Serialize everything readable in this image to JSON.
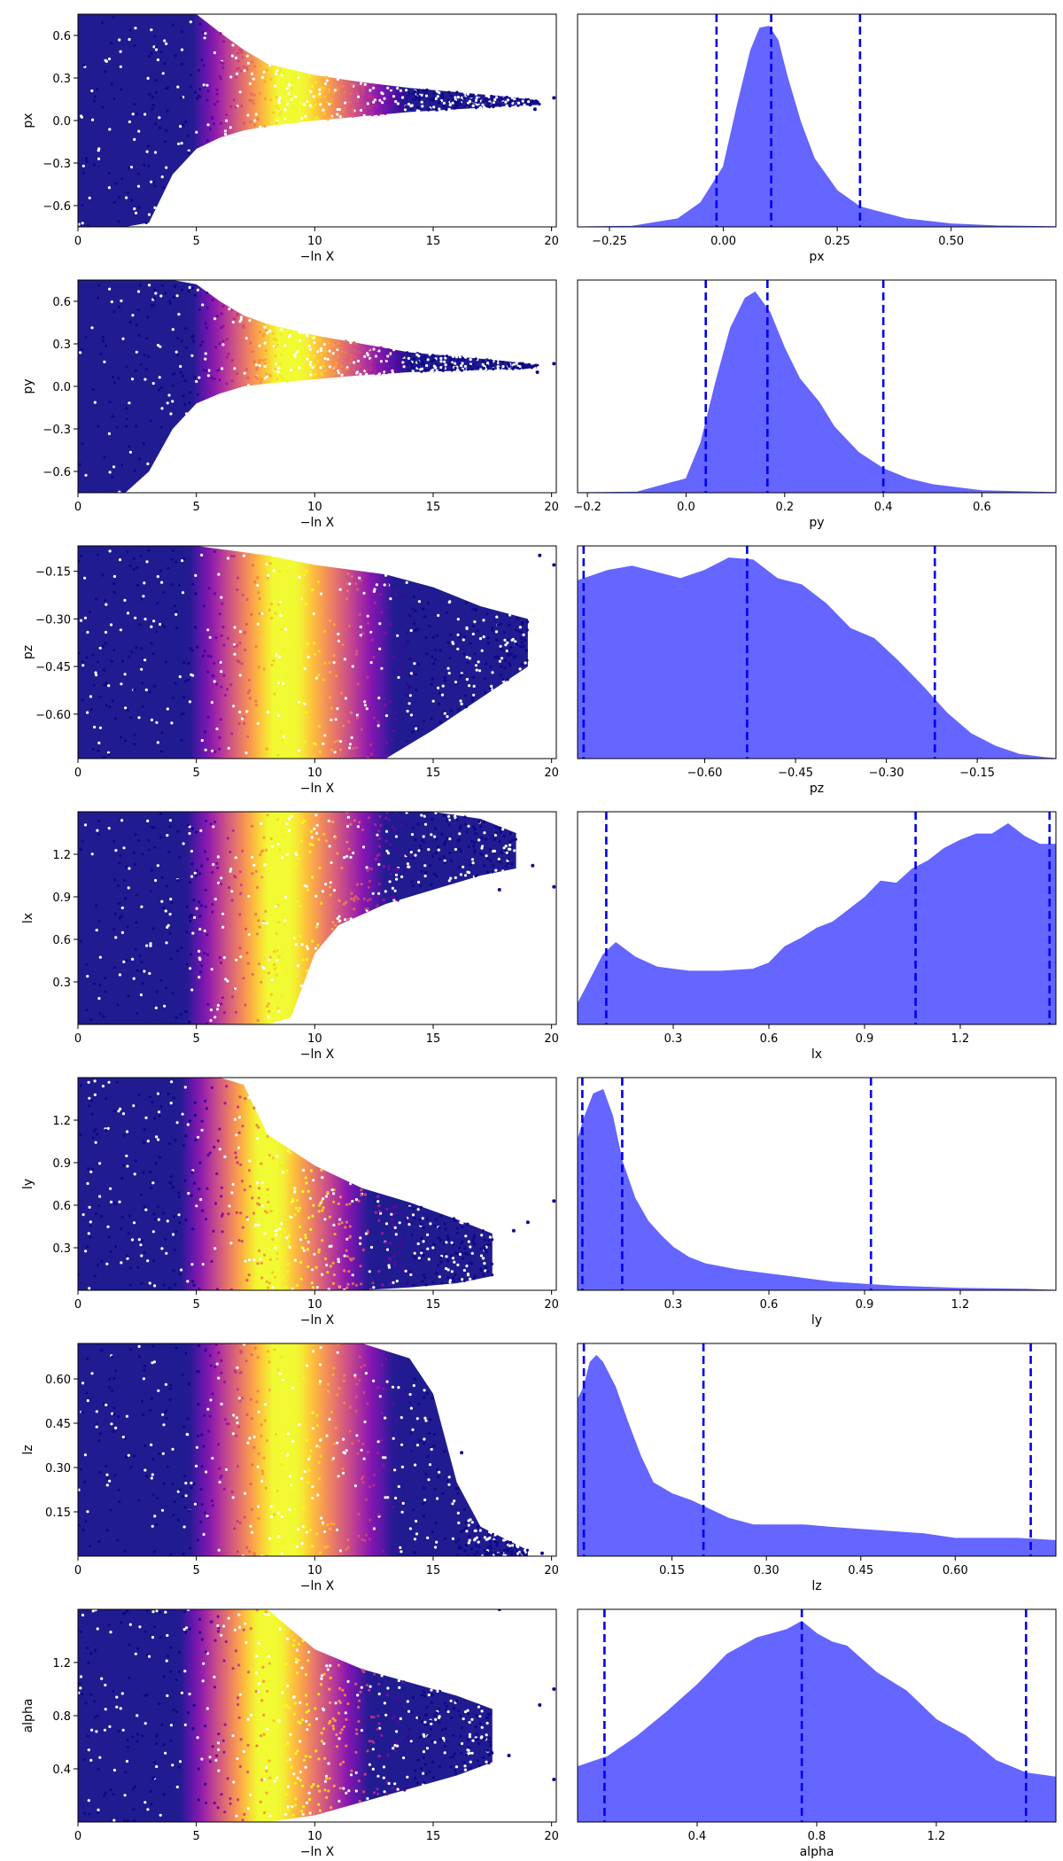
{
  "chart_data": [
    {
      "type": "scatter",
      "ylabel": "px",
      "xlabel": "−ln X",
      "xlim": [
        0,
        20.2
      ],
      "ylim": [
        -0.75,
        0.75
      ],
      "xticks": [
        "0",
        "5",
        "10",
        "15",
        "20"
      ],
      "yticks": [
        "−0.6",
        "−0.3",
        "0.0",
        "0.3",
        "0.6"
      ],
      "colormap": "plasma",
      "envelope": [
        [
          0,
          -0.75,
          0.75
        ],
        [
          2,
          -0.75,
          0.75
        ],
        [
          3,
          -0.72,
          0.75
        ],
        [
          4,
          -0.38,
          0.75
        ],
        [
          5,
          -0.2,
          0.75
        ],
        [
          6,
          -0.12,
          0.62
        ],
        [
          7,
          -0.07,
          0.5
        ],
        [
          8,
          -0.04,
          0.4
        ],
        [
          10,
          0.0,
          0.32
        ],
        [
          12,
          0.03,
          0.27
        ],
        [
          14,
          0.06,
          0.23
        ],
        [
          16,
          0.08,
          0.2
        ],
        [
          18,
          0.1,
          0.17
        ],
        [
          19.5,
          0.11,
          0.14
        ]
      ],
      "outliers": [
        [
          20.1,
          0.16
        ],
        [
          19.3,
          0.08
        ]
      ]
    },
    {
      "type": "area",
      "xlabel": "px",
      "xlim": [
        -0.32,
        0.73
      ],
      "xticks": [
        "−0.25",
        "0.00",
        "0.25",
        "0.50"
      ],
      "x": [
        -0.32,
        -0.2,
        -0.1,
        -0.05,
        0.0,
        0.03,
        0.06,
        0.08,
        0.1,
        0.12,
        0.14,
        0.17,
        0.2,
        0.25,
        0.3,
        0.4,
        0.5,
        0.6,
        0.73
      ],
      "y": [
        0,
        0.003,
        0.04,
        0.12,
        0.3,
        0.6,
        0.88,
        0.99,
        1.0,
        0.93,
        0.75,
        0.52,
        0.34,
        0.18,
        0.1,
        0.04,
        0.015,
        0.005,
        0.001
      ],
      "quantiles": [
        -0.015,
        0.105,
        0.3
      ],
      "fill_color": "#6565ff",
      "quantile_color": "#0000ee"
    },
    {
      "type": "scatter",
      "ylabel": "py",
      "xlabel": "−ln X",
      "xlim": [
        0,
        20.2
      ],
      "ylim": [
        -0.75,
        0.75
      ],
      "xticks": [
        "0",
        "5",
        "10",
        "15",
        "20"
      ],
      "yticks": [
        "−0.6",
        "−0.3",
        "0.0",
        "0.3",
        "0.6"
      ],
      "colormap": "plasma",
      "envelope": [
        [
          0,
          -0.75,
          0.75
        ],
        [
          2,
          -0.75,
          0.75
        ],
        [
          3,
          -0.6,
          0.75
        ],
        [
          4,
          -0.3,
          0.75
        ],
        [
          5,
          -0.12,
          0.72
        ],
        [
          6,
          -0.05,
          0.6
        ],
        [
          7,
          0.0,
          0.5
        ],
        [
          8,
          0.02,
          0.44
        ],
        [
          10,
          0.05,
          0.36
        ],
        [
          12,
          0.08,
          0.3
        ],
        [
          14,
          0.1,
          0.24
        ],
        [
          16,
          0.11,
          0.21
        ],
        [
          18,
          0.12,
          0.18
        ],
        [
          19.5,
          0.13,
          0.15
        ]
      ],
      "outliers": [
        [
          20.1,
          0.16
        ],
        [
          19.4,
          0.1
        ]
      ]
    },
    {
      "type": "area",
      "xlabel": "py",
      "xlim": [
        -0.22,
        0.75
      ],
      "xticks": [
        "−0.2",
        "0.0",
        "0.2",
        "0.4",
        "0.6"
      ],
      "x": [
        -0.22,
        -0.1,
        0.0,
        0.03,
        0.06,
        0.09,
        0.12,
        0.14,
        0.17,
        0.2,
        0.23,
        0.27,
        0.3,
        0.35,
        0.4,
        0.45,
        0.5,
        0.6,
        0.75
      ],
      "y": [
        0,
        0.003,
        0.07,
        0.25,
        0.55,
        0.82,
        0.97,
        1.0,
        0.9,
        0.72,
        0.57,
        0.45,
        0.33,
        0.2,
        0.12,
        0.07,
        0.04,
        0.01,
        0.001
      ],
      "quantiles": [
        0.04,
        0.165,
        0.4
      ],
      "fill_color": "#6565ff",
      "quantile_color": "#0000ee"
    },
    {
      "type": "scatter",
      "ylabel": "pz",
      "xlabel": "−ln X",
      "xlim": [
        0,
        20.2
      ],
      "ylim": [
        -0.74,
        -0.07
      ],
      "xticks": [
        "0",
        "5",
        "10",
        "15",
        "20"
      ],
      "yticks": [
        "−0.60",
        "−0.45",
        "−0.30",
        "−0.15"
      ],
      "colormap": "plasma",
      "envelope": [
        [
          0,
          -0.74,
          -0.07
        ],
        [
          5,
          -0.74,
          -0.07
        ],
        [
          8,
          -0.74,
          -0.1
        ],
        [
          10,
          -0.74,
          -0.13
        ],
        [
          13,
          -0.74,
          -0.16
        ],
        [
          15,
          -0.65,
          -0.2
        ],
        [
          17,
          -0.55,
          -0.26
        ],
        [
          19,
          -0.45,
          -0.3
        ]
      ],
      "outliers": [
        [
          19.5,
          -0.1
        ],
        [
          20.1,
          -0.13
        ],
        [
          18.5,
          -0.38
        ],
        [
          17.7,
          -0.42
        ]
      ]
    },
    {
      "type": "area",
      "xlabel": "pz",
      "xlim": [
        -0.81,
        -0.02
      ],
      "xticks": [
        "−0.60",
        "−0.45",
        "−0.30",
        "−0.15"
      ],
      "x": [
        -0.81,
        -0.76,
        -0.72,
        -0.68,
        -0.64,
        -0.6,
        -0.56,
        -0.52,
        -0.48,
        -0.44,
        -0.4,
        -0.36,
        -0.32,
        -0.28,
        -0.24,
        -0.2,
        -0.16,
        -0.12,
        -0.08,
        -0.04,
        -0.02
      ],
      "y": [
        0.86,
        0.91,
        0.93,
        0.9,
        0.87,
        0.91,
        0.97,
        0.96,
        0.87,
        0.84,
        0.75,
        0.63,
        0.58,
        0.47,
        0.35,
        0.22,
        0.12,
        0.06,
        0.02,
        0.005,
        0.0
      ],
      "quantiles": [
        -0.8,
        -0.53,
        -0.22
      ],
      "fill_color": "#6565ff",
      "quantile_color": "#0000ee"
    },
    {
      "type": "scatter",
      "ylabel": "lx",
      "xlabel": "−ln X",
      "xlim": [
        0,
        20.2
      ],
      "ylim": [
        0.0,
        1.5
      ],
      "xticks": [
        "0",
        "5",
        "10",
        "15",
        "20"
      ],
      "yticks": [
        "0.3",
        "0.6",
        "0.9",
        "1.2"
      ],
      "colormap": "plasma",
      "envelope": [
        [
          0,
          0.0,
          1.5
        ],
        [
          5,
          0.0,
          1.5
        ],
        [
          8,
          0.0,
          1.5
        ],
        [
          9,
          0.05,
          1.5
        ],
        [
          10,
          0.5,
          1.5
        ],
        [
          11,
          0.7,
          1.5
        ],
        [
          13,
          0.85,
          1.5
        ],
        [
          15,
          0.95,
          1.5
        ],
        [
          17,
          1.05,
          1.45
        ],
        [
          18.5,
          1.1,
          1.35
        ]
      ],
      "outliers": [
        [
          20.1,
          0.97
        ],
        [
          19.2,
          1.12
        ],
        [
          17.8,
          0.95
        ]
      ]
    },
    {
      "type": "area",
      "xlabel": "lx",
      "xlim": [
        0.0,
        1.5
      ],
      "xticks": [
        "0.3",
        "0.6",
        "0.9",
        "1.2"
      ],
      "x": [
        0.0,
        0.04,
        0.08,
        0.12,
        0.18,
        0.25,
        0.35,
        0.45,
        0.55,
        0.6,
        0.65,
        0.7,
        0.75,
        0.8,
        0.85,
        0.9,
        0.95,
        1.0,
        1.05,
        1.1,
        1.15,
        1.2,
        1.25,
        1.3,
        1.35,
        1.4,
        1.45,
        1.5
      ],
      "y": [
        0.1,
        0.22,
        0.34,
        0.4,
        0.33,
        0.28,
        0.26,
        0.26,
        0.27,
        0.3,
        0.38,
        0.42,
        0.47,
        0.5,
        0.56,
        0.62,
        0.7,
        0.69,
        0.76,
        0.8,
        0.86,
        0.9,
        0.93,
        0.93,
        0.98,
        0.92,
        0.88,
        0.88
      ],
      "quantiles": [
        0.09,
        1.06,
        1.48
      ],
      "fill_color": "#6565ff",
      "quantile_color": "#0000ee"
    },
    {
      "type": "scatter",
      "ylabel": "ly",
      "xlabel": "−ln X",
      "xlim": [
        0,
        20.2
      ],
      "ylim": [
        0.0,
        1.5
      ],
      "xticks": [
        "0",
        "5",
        "10",
        "15",
        "20"
      ],
      "yticks": [
        "0.3",
        "0.6",
        "0.9",
        "1.2"
      ],
      "colormap": "plasma",
      "envelope": [
        [
          0,
          0.0,
          1.5
        ],
        [
          6,
          0.0,
          1.5
        ],
        [
          7,
          0.0,
          1.45
        ],
        [
          8,
          0.0,
          1.1
        ],
        [
          10,
          0.0,
          0.88
        ],
        [
          12,
          0.0,
          0.72
        ],
        [
          14,
          0.02,
          0.62
        ],
        [
          16,
          0.05,
          0.5
        ],
        [
          17.5,
          0.1,
          0.4
        ]
      ],
      "outliers": [
        [
          20.1,
          0.63
        ],
        [
          19.0,
          0.48
        ],
        [
          18.4,
          0.42
        ]
      ]
    },
    {
      "type": "area",
      "xlabel": "ly",
      "xlim": [
        0.0,
        1.5
      ],
      "xticks": [
        "0.3",
        "0.6",
        "0.9",
        "1.2"
      ],
      "x": [
        0.0,
        0.02,
        0.05,
        0.08,
        0.11,
        0.14,
        0.18,
        0.22,
        0.26,
        0.3,
        0.35,
        0.4,
        0.5,
        0.6,
        0.7,
        0.8,
        0.9,
        1.0,
        1.2,
        1.4,
        1.5
      ],
      "y": [
        0.73,
        0.84,
        0.96,
        0.98,
        0.85,
        0.63,
        0.45,
        0.34,
        0.27,
        0.21,
        0.16,
        0.13,
        0.1,
        0.08,
        0.06,
        0.04,
        0.03,
        0.02,
        0.01,
        0.005,
        0.0
      ],
      "quantiles": [
        0.015,
        0.14,
        0.92
      ],
      "fill_color": "#6565ff",
      "quantile_color": "#0000ee"
    },
    {
      "type": "scatter",
      "ylabel": "lz",
      "xlabel": "−ln X",
      "xlim": [
        0,
        20.2
      ],
      "ylim": [
        0.0,
        0.72
      ],
      "xticks": [
        "0",
        "5",
        "10",
        "15",
        "20"
      ],
      "yticks": [
        "0.15",
        "0.30",
        "0.45",
        "0.60"
      ],
      "colormap": "plasma",
      "envelope": [
        [
          0,
          0.0,
          0.72
        ],
        [
          12,
          0.0,
          0.72
        ],
        [
          14,
          0.0,
          0.67
        ],
        [
          15,
          0.0,
          0.55
        ],
        [
          16,
          0.0,
          0.25
        ],
        [
          17,
          0.0,
          0.1
        ],
        [
          19,
          0.0,
          0.02
        ]
      ],
      "outliers": [
        [
          18.8,
          0.01
        ],
        [
          19.6,
          0.01
        ],
        [
          16.2,
          0.35
        ]
      ]
    },
    {
      "type": "area",
      "xlabel": "lz",
      "xlim": [
        0.0,
        0.76
      ],
      "xticks": [
        "0.15",
        "0.30",
        "0.45",
        "0.60"
      ],
      "x": [
        0.0,
        0.01,
        0.02,
        0.03,
        0.04,
        0.06,
        0.08,
        0.1,
        0.12,
        0.15,
        0.18,
        0.21,
        0.24,
        0.28,
        0.32,
        0.36,
        0.4,
        0.45,
        0.5,
        0.55,
        0.6,
        0.65,
        0.7,
        0.76
      ],
      "y": [
        0.7,
        0.76,
        0.87,
        0.9,
        0.87,
        0.76,
        0.6,
        0.45,
        0.33,
        0.28,
        0.25,
        0.21,
        0.17,
        0.14,
        0.14,
        0.14,
        0.13,
        0.12,
        0.11,
        0.1,
        0.08,
        0.08,
        0.08,
        0.07
      ],
      "quantiles": [
        0.01,
        0.2,
        0.72
      ],
      "fill_color": "#6565ff",
      "quantile_color": "#0000ee"
    },
    {
      "type": "scatter",
      "ylabel": "alpha",
      "xlabel": "−ln X",
      "xlim": [
        0,
        20.2
      ],
      "ylim": [
        0.0,
        1.6
      ],
      "xticks": [
        "0",
        "5",
        "10",
        "15",
        "20"
      ],
      "yticks": [
        "0.4",
        "0.8",
        "1.2"
      ],
      "colormap": "plasma",
      "envelope": [
        [
          0,
          0.0,
          1.6
        ],
        [
          8,
          0.0,
          1.6
        ],
        [
          10,
          0.05,
          1.3
        ],
        [
          12,
          0.15,
          1.15
        ],
        [
          14,
          0.25,
          1.05
        ],
        [
          16,
          0.35,
          0.95
        ],
        [
          17.5,
          0.45,
          0.85
        ]
      ],
      "outliers": [
        [
          17.8,
          1.6
        ],
        [
          20.1,
          1.0
        ],
        [
          19.5,
          0.88
        ],
        [
          20.1,
          0.32
        ],
        [
          18.2,
          0.5
        ]
      ]
    },
    {
      "type": "area",
      "xlabel": "alpha",
      "xlim": [
        0.0,
        1.6
      ],
      "xticks": [
        "0.4",
        "0.8",
        "1.2"
      ],
      "x": [
        0.0,
        0.1,
        0.2,
        0.3,
        0.4,
        0.5,
        0.6,
        0.7,
        0.75,
        0.8,
        0.85,
        0.9,
        1.0,
        1.1,
        1.2,
        1.3,
        1.4,
        1.5,
        1.6
      ],
      "y": [
        0.27,
        0.32,
        0.42,
        0.54,
        0.67,
        0.82,
        0.9,
        0.94,
        0.98,
        0.92,
        0.88,
        0.86,
        0.73,
        0.64,
        0.5,
        0.42,
        0.3,
        0.24,
        0.22
      ],
      "quantiles": [
        0.09,
        0.75,
        1.5
      ],
      "fill_color": "#6565ff",
      "quantile_color": "#0000ee"
    }
  ]
}
